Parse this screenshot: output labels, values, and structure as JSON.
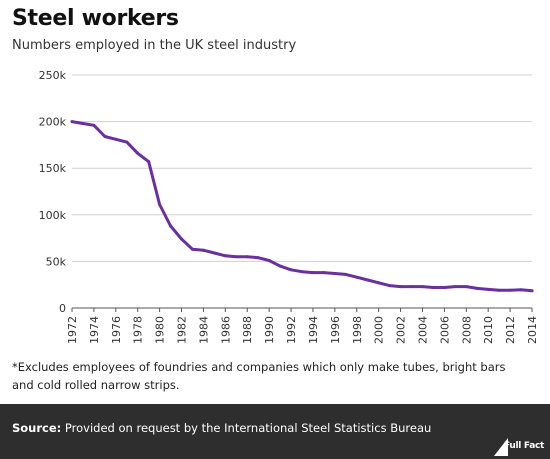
{
  "header": {
    "title": "Steel workers",
    "subtitle": "Numbers employed in the UK steel industry"
  },
  "note": "*Excludes employees of foundries and companies which only make tubes, bright bars and cold rolled narrow strips.",
  "footer": {
    "source_label": "Source:",
    "source_text": "Provided on request by the International Steel Statistics Bureau",
    "logo_text": "Full Fact"
  },
  "colors": {
    "line": "#6a2fa0",
    "grid": "#d0d0d0",
    "footer_bg": "#2e2e2e"
  },
  "chart_data": {
    "type": "line",
    "title": "Steel workers",
    "subtitle": "Numbers employed in the UK steel industry",
    "xlabel": "",
    "ylabel": "",
    "ylim": [
      0,
      250000
    ],
    "xlim": [
      1972,
      2014
    ],
    "grid": true,
    "y_ticks": [
      0,
      50000,
      100000,
      150000,
      200000,
      250000
    ],
    "y_tick_labels": [
      "0",
      "50k",
      "100k",
      "150k",
      "200k",
      "250k"
    ],
    "x_tick_labels": [
      "1972",
      "1974",
      "1976",
      "1978",
      "1980",
      "1982",
      "1984",
      "1986",
      "1988",
      "1990",
      "1992",
      "1994",
      "1996",
      "1998",
      "2000",
      "2002",
      "2004",
      "2006",
      "2008",
      "2010",
      "2012",
      "2014"
    ],
    "series": [
      {
        "x": [
          1972,
          1973,
          1974,
          1975,
          1976,
          1977,
          1978,
          1979,
          1980,
          1981,
          1982,
          1983,
          1984,
          1985,
          1986,
          1987,
          1988,
          1989,
          1990,
          1991,
          1992,
          1993,
          1994,
          1995,
          1996,
          1997,
          1998,
          1999,
          2000,
          2001,
          2002,
          2003,
          2004,
          2005,
          2006,
          2007,
          2008,
          2009,
          2010,
          2011,
          2012,
          2013,
          2014
        ],
        "values": [
          200000,
          198000,
          196000,
          184000,
          181000,
          178000,
          166000,
          157000,
          111000,
          88000,
          74000,
          63000,
          62000,
          59000,
          56000,
          55000,
          55000,
          54000,
          51000,
          45000,
          41000,
          39000,
          38000,
          38000,
          37000,
          36000,
          33000,
          30000,
          27000,
          24000,
          23000,
          23000,
          23000,
          22000,
          22000,
          23000,
          23000,
          21000,
          20000,
          19000,
          19000,
          19500,
          18500
        ]
      }
    ]
  }
}
